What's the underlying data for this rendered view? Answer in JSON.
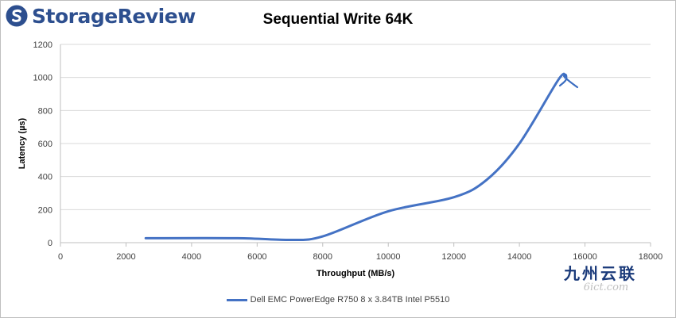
{
  "brand": {
    "name": "StorageReview"
  },
  "watermark": {
    "chinese": "九州云联",
    "url": "6ict.com"
  },
  "colors": {
    "series": "#4472c4",
    "grid": "#d9d9d9",
    "annotation": "#3a6cc0",
    "brand": "#2d4f8f"
  },
  "chart_data": {
    "type": "line",
    "title": "Sequential Write 64K",
    "xlabel": "Throughput (MB/s)",
    "ylabel": "Latency (µs)",
    "xlim": [
      0,
      18000
    ],
    "ylim": [
      0,
      1200
    ],
    "xticks": [
      0,
      2000,
      4000,
      6000,
      8000,
      10000,
      12000,
      14000,
      16000,
      18000
    ],
    "yticks": [
      0,
      200,
      400,
      600,
      800,
      1000,
      1200
    ],
    "grid": true,
    "legend_position": "bottom",
    "series": [
      {
        "name": "Dell EMC PowerEdge R750 8 x 3.84TB Intel P5510",
        "x": [
          2600,
          5400,
          7000,
          8000,
          10000,
          12000,
          13000,
          14000,
          15200,
          15400
        ],
        "y": [
          27,
          27,
          17,
          38,
          190,
          275,
          380,
          600,
          990,
          1000
        ]
      }
    ]
  }
}
